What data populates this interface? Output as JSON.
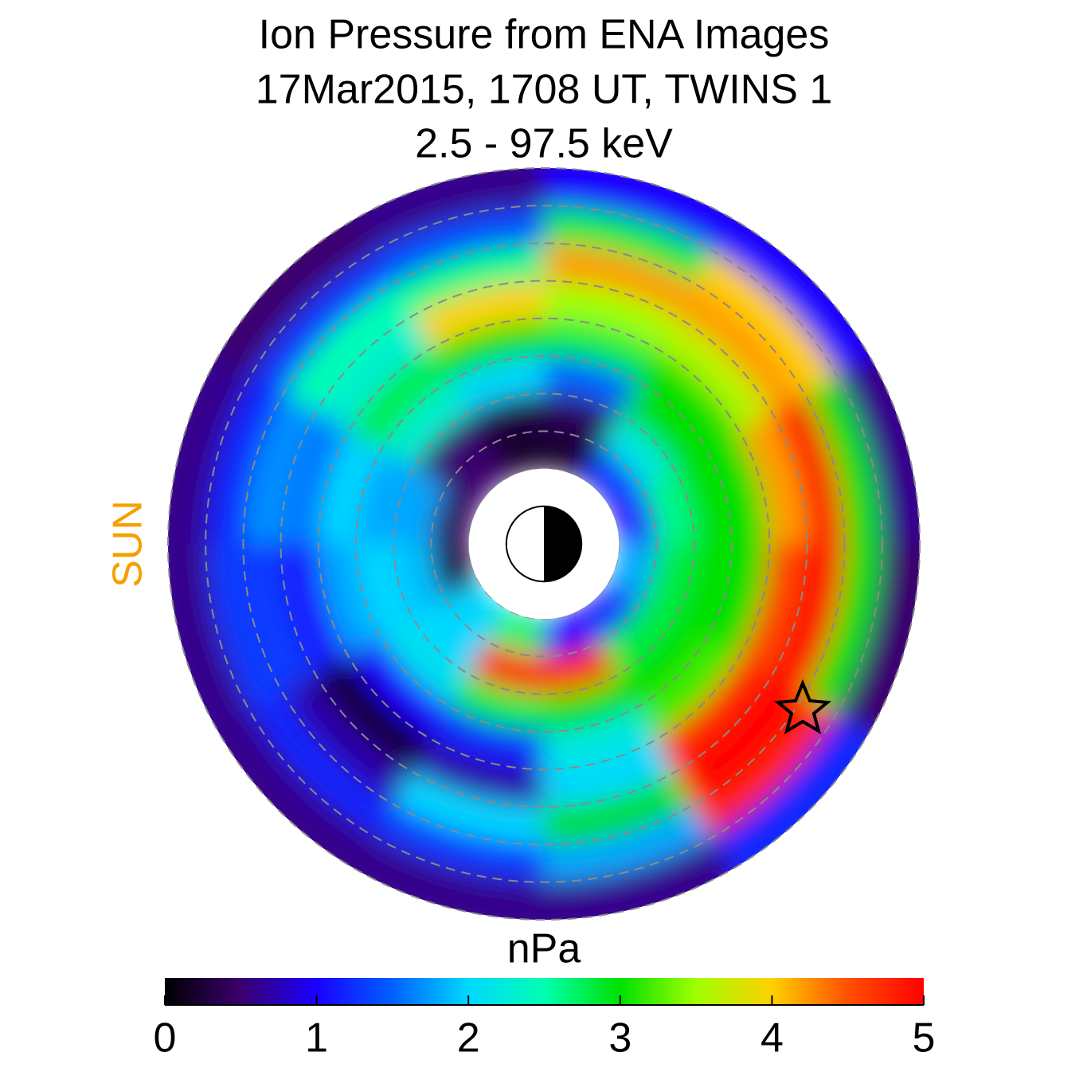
{
  "chart_data": {
    "type": "polar_heatmap",
    "title_lines": [
      "Ion Pressure from  ENA Images",
      "17Mar2015, 1708 UT,  TWINS 1",
      "2.5 - 97.5 keV"
    ],
    "sun_label": "SUN",
    "mlt_edges": [
      0,
      2,
      4,
      6,
      8,
      10,
      12,
      14,
      16,
      18,
      20,
      22,
      24
    ],
    "r_edges": [
      2,
      3,
      4,
      5,
      6,
      7,
      8,
      9,
      10
    ],
    "values": [
      [
        1.0,
        2.6,
        3.0,
        3.0,
        4.2,
        4.9,
        3.0,
        0.6
      ],
      [
        1.2,
        2.2,
        3.0,
        3.0,
        3.6,
        4.2,
        4.0,
        1.0
      ],
      [
        0.2,
        0.4,
        1.5,
        2.8,
        3.5,
        4.2,
        2.8,
        1.0
      ],
      [
        0.2,
        0.3,
        2.0,
        3.0,
        4.0,
        2.6,
        1.4,
        0.6
      ],
      [
        0.5,
        0.5,
        2.3,
        2.8,
        2.3,
        2.5,
        1.3,
        0.5
      ],
      [
        0.4,
        1.8,
        1.8,
        2.0,
        1.6,
        1.7,
        1.2,
        0.6
      ],
      [
        0.3,
        1.9,
        2.0,
        1.8,
        1.1,
        1.3,
        1.3,
        0.6
      ],
      [
        2.0,
        2.0,
        2.1,
        1.0,
        0.2,
        0.7,
        1.2,
        0.6
      ],
      [
        2.7,
        4.8,
        2.8,
        1.2,
        0.7,
        2.0,
        1.3,
        0.6
      ],
      [
        1.0,
        4.7,
        3.0,
        2.2,
        2.0,
        3.0,
        1.8,
        0.6
      ],
      [
        1.1,
        2.8,
        3.0,
        3.2,
        4.8,
        5.0,
        4.8,
        1.2
      ],
      [
        1.8,
        2.8,
        3.0,
        3.0,
        4.6,
        5.0,
        3.0,
        0.5
      ]
    ],
    "colorbar_label": "nPa",
    "clim": [
      0,
      5
    ],
    "cticks": [
      0,
      1,
      2,
      3,
      4,
      5
    ],
    "colormap": [
      "#000000",
      "#3a006e",
      "#1a00ff",
      "#0060ff",
      "#00d8ff",
      "#00ffb0",
      "#00e000",
      "#a0ff00",
      "#ffd000",
      "#ff5000",
      "#ff0000"
    ],
    "grid": true
  }
}
